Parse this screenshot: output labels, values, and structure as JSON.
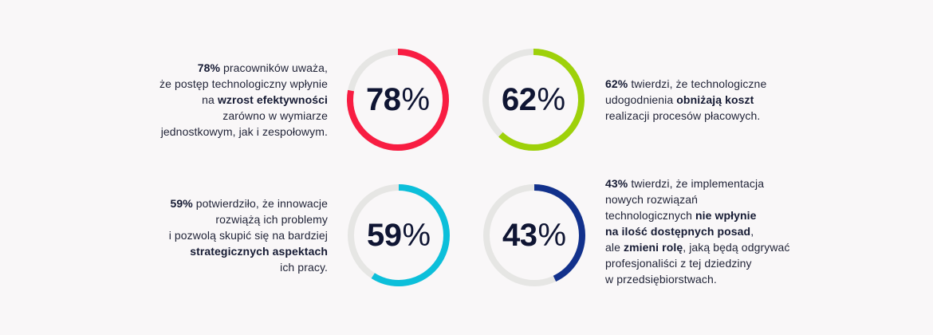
{
  "colors": {
    "background": "#f9f7f8",
    "track": "#e6e6e4",
    "text": "#1f2236",
    "number": "#0f1533"
  },
  "stats": [
    {
      "id": "efficiency",
      "value": 78,
      "num_label": "78",
      "pct_label": "%",
      "color": "#f81d42",
      "lines": [
        [
          {
            "b": "78%"
          },
          {
            "t": " pracowników uważa,"
          }
        ],
        [
          {
            "t": "że postęp technologiczny wpłynie"
          }
        ],
        [
          {
            "t": "na "
          },
          {
            "b": "wzrost efektywności"
          }
        ],
        [
          {
            "t": "zarówno w wymiarze"
          }
        ],
        [
          {
            "t": "jednostkowym, jak i zespołowym."
          }
        ]
      ]
    },
    {
      "id": "cost",
      "value": 62,
      "num_label": "62",
      "pct_label": "%",
      "color": "#9ed10a",
      "lines": [
        [
          {
            "b": "62%"
          },
          {
            "t": " twierdzi, że technologiczne"
          }
        ],
        [
          {
            "t": "udogodnienia "
          },
          {
            "b": "obniżają koszt"
          }
        ],
        [
          {
            "t": "realizacji procesów płacowych."
          }
        ]
      ]
    },
    {
      "id": "innovation",
      "value": 59,
      "num_label": "59",
      "pct_label": "%",
      "color": "#0cbfda",
      "lines": [
        [
          {
            "b": "59%"
          },
          {
            "t": " potwierdziło, że innowacje"
          }
        ],
        [
          {
            "t": "rozwiążą ich problemy"
          }
        ],
        [
          {
            "t": "i pozwolą skupić się na bardziej"
          }
        ],
        [
          {
            "b": "strategicznych aspektach"
          }
        ],
        [
          {
            "t": "ich pracy."
          }
        ]
      ]
    },
    {
      "id": "jobs",
      "value": 43,
      "num_label": "43",
      "pct_label": "%",
      "color": "#12318c",
      "lines": [
        [
          {
            "b": "43%"
          },
          {
            "t": " twierdzi, że implementacja"
          }
        ],
        [
          {
            "t": "nowych rozwiązań"
          }
        ],
        [
          {
            "t": "technologicznych "
          },
          {
            "b": "nie wpłynie"
          }
        ],
        [
          {
            "b": "na ilość dostępnych posad"
          },
          {
            "t": ","
          }
        ],
        [
          {
            "t": "ale "
          },
          {
            "b": "zmieni rolę"
          },
          {
            "t": ", jaką będą odgrywać"
          }
        ],
        [
          {
            "t": "profesjonaliści z tej dziedziny"
          }
        ],
        [
          {
            "t": "w przedsiębiorstwach."
          }
        ]
      ]
    }
  ],
  "chart_data": {
    "type": "pie",
    "subtype": "donut-progress",
    "title": "",
    "categories": [
      "wzrost efektywności",
      "obniżają koszt",
      "strategicznych aspektach",
      "nie wpłynie na ilość dostępnych posad"
    ],
    "values": [
      78,
      62,
      59,
      43
    ],
    "unit": "%",
    "colors": [
      "#f81d42",
      "#9ed10a",
      "#0cbfda",
      "#12318c"
    ],
    "track_color": "#e6e6e4",
    "layout": "2x2 grid, text labels beside each ring"
  }
}
